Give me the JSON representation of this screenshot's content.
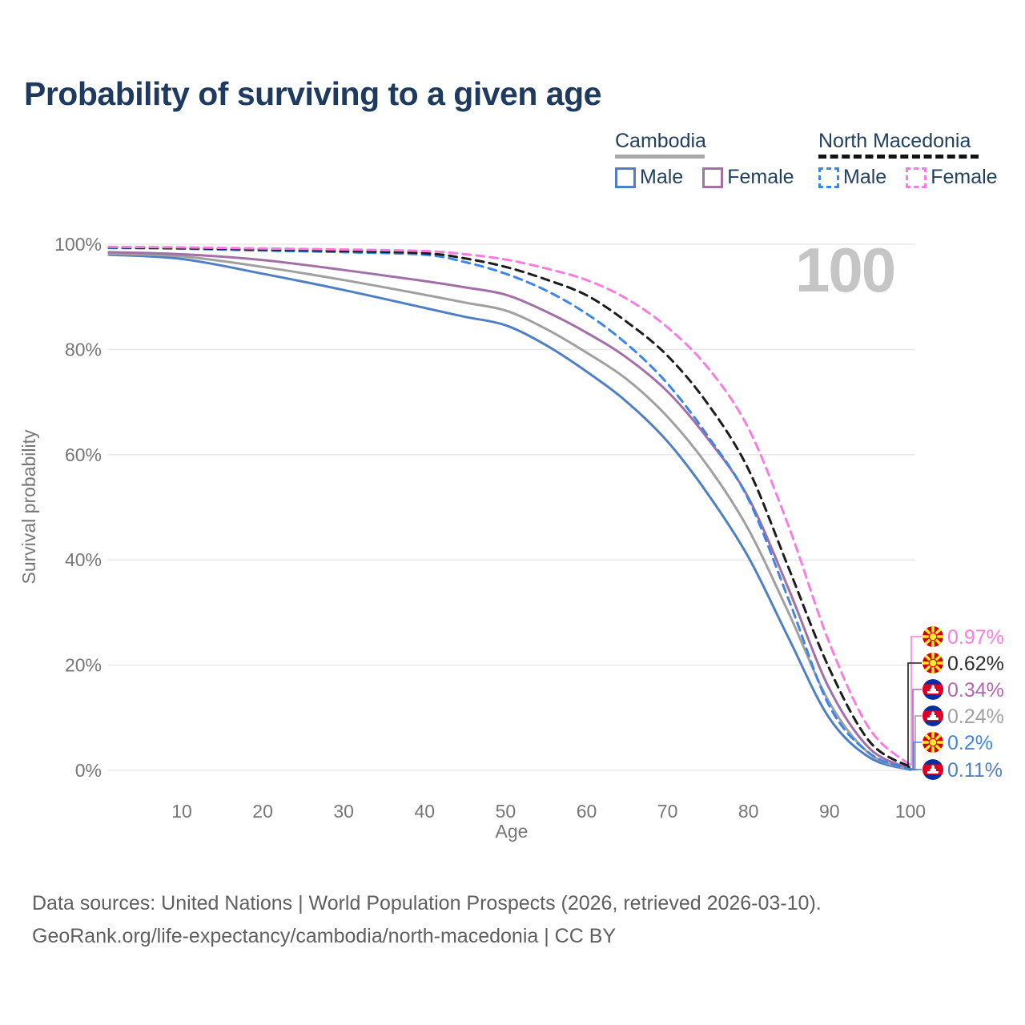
{
  "title": "Probability of surviving to a given age",
  "watermark": "100",
  "legend": {
    "groups": [
      {
        "name": "Cambodia",
        "line_style": "solid",
        "underline_color": "#a8a8a8",
        "items": [
          {
            "label": "Male",
            "color": "#5080c4"
          },
          {
            "label": "Female",
            "color": "#a36fa9"
          }
        ]
      },
      {
        "name": "North Macedonia",
        "line_style": "dashed",
        "underline_color": "#121212",
        "items": [
          {
            "label": "Male",
            "color": "#3d87e4"
          },
          {
            "label": "Female",
            "color": "#fb7ce1"
          }
        ]
      }
    ]
  },
  "chart_data": {
    "type": "line",
    "title": "Probability of surviving to a given age",
    "xlabel": "Age",
    "ylabel": "Survival probability",
    "xlim": [
      1,
      100
    ],
    "ylim": [
      0,
      100
    ],
    "grid": "horizontal",
    "x_ticks": {
      "values": [
        10,
        20,
        30,
        40,
        50,
        60,
        70,
        80,
        90,
        100
      ],
      "labels": [
        "10",
        "20",
        "30",
        "40",
        "50",
        "60",
        "70",
        "80",
        "90",
        "100"
      ]
    },
    "y_ticks": {
      "values": [
        0,
        20,
        40,
        60,
        80,
        100
      ],
      "labels": [
        "0%",
        "20%",
        "40%",
        "60%",
        "80%",
        "100%"
      ]
    },
    "x": [
      1,
      10,
      20,
      30,
      40,
      45,
      50,
      55,
      60,
      65,
      70,
      75,
      80,
      85,
      90,
      95,
      100
    ],
    "series": [
      {
        "name": "Cambodia Male",
        "slug": "cambodia-male",
        "country": "Cambodia",
        "color": "#5080c4",
        "dash": false,
        "values": [
          98.0,
          97.2,
          94.4,
          91.3,
          87.9,
          86.2,
          84.6,
          80.8,
          75.8,
          70.0,
          62.5,
          52.5,
          40.5,
          25.0,
          9.9,
          2.4,
          0.11
        ]
      },
      {
        "name": "Cambodia Overall",
        "slug": "cambodia-overall",
        "country": "Cambodia",
        "color": "#a0a0a0",
        "dash": false,
        "values": [
          98.2,
          97.7,
          95.7,
          93.2,
          90.4,
          88.9,
          87.4,
          83.9,
          79.4,
          74.3,
          67.2,
          57.8,
          45.8,
          29.8,
          12.9,
          3.1,
          0.24
        ]
      },
      {
        "name": "Cambodia Female",
        "slug": "cambodia-female",
        "country": "Cambodia",
        "color": "#a36fa9",
        "dash": false,
        "values": [
          98.5,
          98.1,
          97.0,
          95.1,
          93.0,
          91.8,
          90.4,
          87.2,
          83.2,
          78.4,
          72.0,
          63.0,
          51.8,
          34.3,
          15.5,
          4.1,
          0.34
        ]
      },
      {
        "name": "North Macedonia Male",
        "slug": "north-macedonia-male",
        "country": "North Macedonia",
        "color": "#3d87e4",
        "dash": true,
        "values": [
          99.3,
          99.15,
          98.8,
          98.5,
          98.0,
          96.6,
          94.4,
          91.2,
          86.8,
          81.0,
          73.5,
          63.5,
          51.5,
          32.3,
          12.2,
          3.2,
          0.2
        ]
      },
      {
        "name": "North Macedonia Overall",
        "slug": "north-macedonia-overall",
        "country": "North Macedonia",
        "color": "#1c1c1c",
        "dash": true,
        "values": [
          99.4,
          99.25,
          99.0,
          98.7,
          98.3,
          97.3,
          95.7,
          93.3,
          90.3,
          85.2,
          78.8,
          69.6,
          57.2,
          38.3,
          19.3,
          5.4,
          0.62
        ]
      },
      {
        "name": "North Macedonia Female",
        "slug": "north-macedonia-female",
        "country": "North Macedonia",
        "color": "#fb7ce1",
        "dash": true,
        "values": [
          99.5,
          99.4,
          99.2,
          99.0,
          98.7,
          98.1,
          97.1,
          95.4,
          93.2,
          89.6,
          84.2,
          76.5,
          65.0,
          46.2,
          24.2,
          7.8,
          0.97
        ]
      }
    ],
    "end_labels": [
      {
        "value_label": "0.97%",
        "flag": "north-macedonia",
        "series": "north-macedonia-female",
        "color": "#fb7ce1"
      },
      {
        "value_label": "0.62%",
        "flag": "north-macedonia",
        "series": "north-macedonia-overall",
        "color": "#2b2b2b"
      },
      {
        "value_label": "0.34%",
        "flag": "cambodia",
        "series": "cambodia-female",
        "color": "#b465ac"
      },
      {
        "value_label": "0.24%",
        "flag": "cambodia",
        "series": "cambodia-overall",
        "color": "#a0a0a0"
      },
      {
        "value_label": "0.2%",
        "flag": "north-macedonia",
        "series": "north-macedonia-male",
        "color": "#3d87e4"
      },
      {
        "value_label": "0.11%",
        "flag": "cambodia",
        "series": "cambodia-male",
        "color": "#5080c4"
      }
    ]
  },
  "footer": {
    "line1": "Data sources: United Nations | World Population Prospects (2026, retrieved 2026-03-10).",
    "line2": "GeoRank.org/life-expectancy/cambodia/north-macedonia | CC BY"
  }
}
